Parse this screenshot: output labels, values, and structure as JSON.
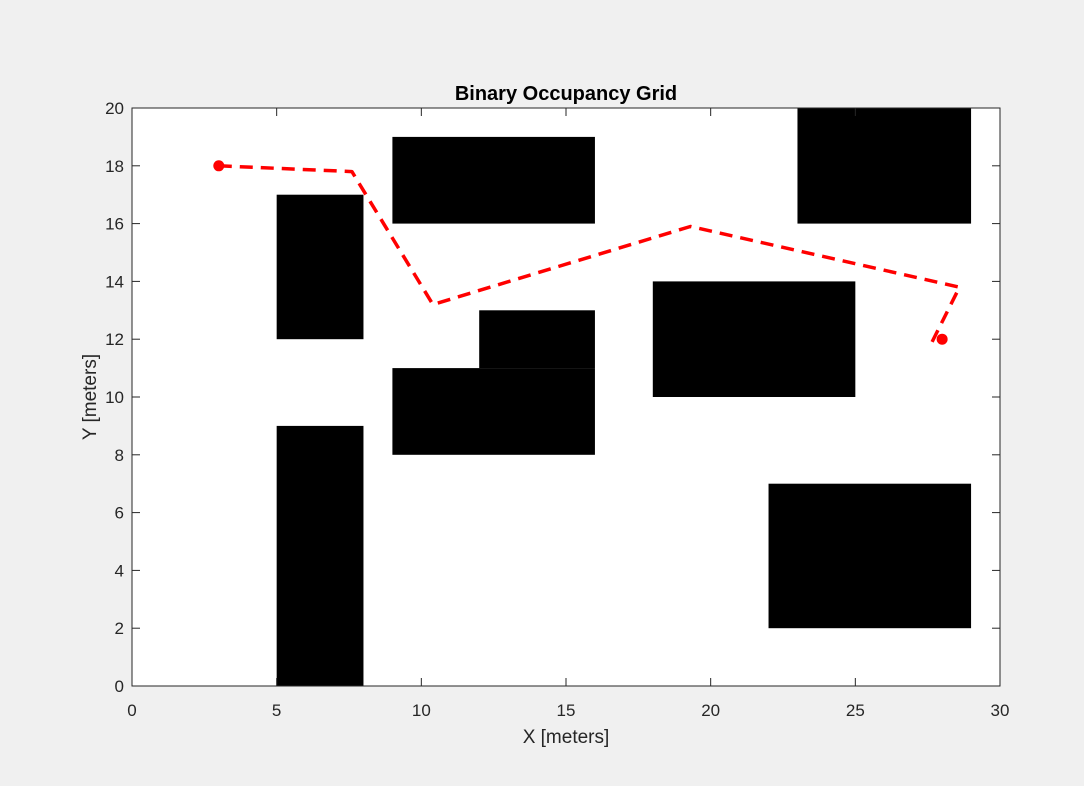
{
  "chart_data": {
    "type": "map",
    "title": "Binary Occupancy Grid",
    "xlabel": "X [meters]",
    "ylabel": "Y [meters]",
    "xlim": [
      0,
      30
    ],
    "ylim": [
      0,
      20
    ],
    "x_ticks": [
      0,
      5,
      10,
      15,
      20,
      25,
      30
    ],
    "y_ticks": [
      0,
      2,
      4,
      6,
      8,
      10,
      12,
      14,
      16,
      18,
      20
    ],
    "grid": false,
    "occupied_color": "#000000",
    "free_color": "#ffffff",
    "obstacles": [
      {
        "x": [
          5,
          8
        ],
        "y": [
          0,
          9
        ]
      },
      {
        "x": [
          5,
          8
        ],
        "y": [
          12,
          17
        ]
      },
      {
        "x": [
          9,
          16
        ],
        "y": [
          16,
          19
        ]
      },
      {
        "x": [
          9,
          16
        ],
        "y": [
          8,
          11
        ]
      },
      {
        "x": [
          12,
          16
        ],
        "y": [
          11,
          13
        ]
      },
      {
        "x": [
          18,
          25
        ],
        "y": [
          10,
          14
        ]
      },
      {
        "x": [
          23,
          29
        ],
        "y": [
          16,
          20
        ]
      },
      {
        "x": [
          22,
          29
        ],
        "y": [
          2,
          7
        ]
      }
    ],
    "path": {
      "color": "#ff0000",
      "style": "dashed",
      "x": [
        3,
        7.6,
        10.4,
        19.3,
        28.6,
        27.6
      ],
      "y": [
        18,
        17.8,
        13.2,
        15.9,
        13.8,
        11.8
      ]
    },
    "markers": {
      "color": "#ff0000",
      "points": [
        {
          "x": 3,
          "y": 18
        },
        {
          "x": 28,
          "y": 12
        }
      ]
    }
  }
}
